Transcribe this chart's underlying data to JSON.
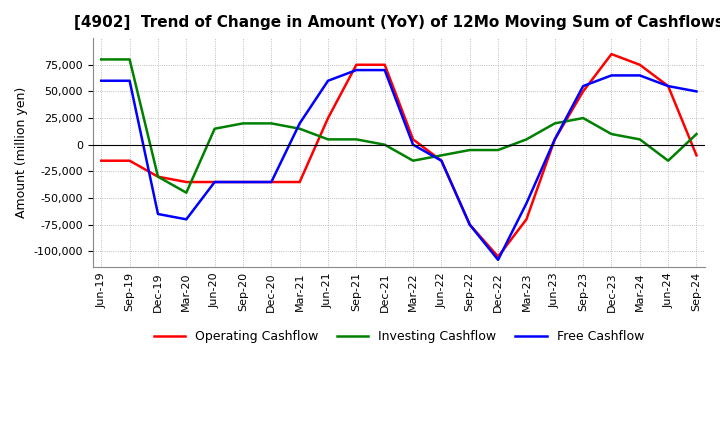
{
  "title": "[4902]  Trend of Change in Amount (YoY) of 12Mo Moving Sum of Cashflows",
  "ylabel": "Amount (million yen)",
  "x_labels": [
    "Jun-19",
    "Sep-19",
    "Dec-19",
    "Mar-20",
    "Jun-20",
    "Sep-20",
    "Dec-20",
    "Mar-21",
    "Jun-21",
    "Sep-21",
    "Dec-21",
    "Mar-22",
    "Jun-22",
    "Sep-22",
    "Dec-22",
    "Mar-23",
    "Jun-23",
    "Sep-23",
    "Dec-23",
    "Mar-24",
    "Jun-24",
    "Sep-24"
  ],
  "operating": [
    -15000,
    -15000,
    -30000,
    -35000,
    -35000,
    -35000,
    -35000,
    -35000,
    25000,
    75000,
    75000,
    5000,
    -15000,
    -75000,
    -105000,
    -70000,
    5000,
    50000,
    85000,
    75000,
    55000,
    -10000
  ],
  "investing": [
    80000,
    80000,
    -30000,
    -45000,
    15000,
    20000,
    20000,
    15000,
    5000,
    5000,
    0,
    -15000,
    -10000,
    -5000,
    -5000,
    5000,
    20000,
    25000,
    10000,
    5000,
    -15000,
    10000
  ],
  "free": [
    60000,
    60000,
    -65000,
    -70000,
    -35000,
    -35000,
    -35000,
    20000,
    60000,
    70000,
    70000,
    0,
    -15000,
    -75000,
    -108000,
    -55000,
    5000,
    55000,
    65000,
    65000,
    55000,
    50000
  ],
  "ylim": [
    -115000,
    100000
  ],
  "yticks": [
    -100000,
    -75000,
    -50000,
    -25000,
    0,
    25000,
    50000,
    75000
  ],
  "line_colors": {
    "operating": "#FF0000",
    "investing": "#008000",
    "free": "#0000FF"
  },
  "legend_labels": [
    "Operating Cashflow",
    "Investing Cashflow",
    "Free Cashflow"
  ],
  "background_color": "#FFFFFF",
  "grid_color": "#AAAAAA",
  "title_fontsize": 11,
  "label_fontsize": 9,
  "tick_fontsize": 8
}
